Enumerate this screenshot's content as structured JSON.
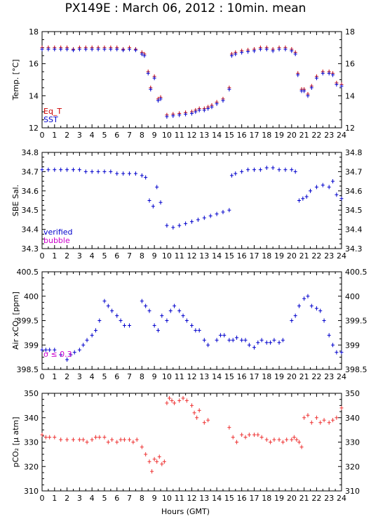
{
  "title": "PX149E : March 06, 2012 : 10min. mean",
  "xlabel": "Hours (GMT)",
  "x_ticks": [
    "0",
    "1",
    "2",
    "3",
    "4",
    "5",
    "6",
    "7",
    "8",
    "9",
    "10",
    "11",
    "12",
    "13",
    "14",
    "15",
    "16",
    "17",
    "18",
    "19",
    "20",
    "21",
    "22",
    "23",
    "24"
  ],
  "colors": {
    "eq_t": "#cc0000",
    "sst": "#0000cc",
    "verified": "#0000cc",
    "bubble": "#cc00cc",
    "pco2": "#ee3333",
    "sigma": "#cc00cc"
  },
  "chart_data": [
    {
      "type": "scatter",
      "ylabel": "Temp. [°C]",
      "xlim": [
        0,
        24
      ],
      "ylim": [
        12,
        18
      ],
      "y_ticks": [
        "12",
        "14",
        "16",
        "18"
      ],
      "legend": [
        "Eq_T",
        "SST"
      ],
      "legend_position": "bottom-left",
      "series": [
        {
          "name": "Eq_T",
          "color": "#cc0000",
          "x": [
            0,
            0.5,
            1,
            1.5,
            2,
            2.5,
            3,
            3.5,
            4,
            4.5,
            5,
            5.5,
            6,
            6.5,
            7,
            7.5,
            8,
            8.2,
            8.5,
            8.7,
            9,
            9.3,
            9.5,
            10,
            10.5,
            11,
            11.5,
            12,
            12.3,
            12.6,
            13,
            13.3,
            13.6,
            14,
            14.5,
            15,
            15.2,
            15.5,
            16,
            16.5,
            17,
            17.5,
            18,
            18.5,
            19,
            19.5,
            20,
            20.3,
            20.5,
            20.8,
            21,
            21.3,
            21.6,
            22,
            22.5,
            23,
            23.3,
            23.6,
            24
          ],
          "y": [
            17.0,
            17.0,
            17.0,
            17.0,
            17.0,
            16.9,
            17.0,
            17.0,
            17.0,
            17.0,
            17.0,
            17.0,
            17.0,
            16.9,
            17.0,
            16.9,
            16.7,
            16.6,
            15.5,
            14.5,
            15.2,
            13.8,
            13.9,
            12.8,
            12.85,
            12.9,
            12.95,
            13.0,
            13.1,
            13.2,
            13.2,
            13.3,
            13.4,
            13.6,
            13.8,
            14.5,
            16.6,
            16.7,
            16.8,
            16.85,
            16.9,
            17.0,
            17.0,
            16.9,
            17.0,
            17.0,
            16.9,
            16.7,
            15.4,
            14.4,
            14.4,
            14.1,
            14.6,
            15.2,
            15.5,
            15.5,
            15.4,
            14.8,
            14.7
          ]
        },
        {
          "name": "SST",
          "color": "#0000cc",
          "x": [
            0,
            0.5,
            1,
            1.5,
            2,
            2.5,
            3,
            3.5,
            4,
            4.5,
            5,
            5.5,
            6,
            6.5,
            7,
            7.5,
            8,
            8.2,
            8.5,
            8.7,
            9,
            9.3,
            9.5,
            10,
            10.5,
            11,
            11.5,
            12,
            12.3,
            12.6,
            13,
            13.3,
            13.6,
            14,
            14.5,
            15,
            15.2,
            15.5,
            16,
            16.5,
            17,
            17.5,
            18,
            18.5,
            19,
            19.5,
            20,
            20.3,
            20.5,
            20.8,
            21,
            21.3,
            21.6,
            22,
            22.5,
            23,
            23.3,
            23.6,
            24
          ],
          "y": [
            16.9,
            16.9,
            16.9,
            16.9,
            16.9,
            16.85,
            16.9,
            16.9,
            16.9,
            16.9,
            16.9,
            16.9,
            16.9,
            16.85,
            16.9,
            16.85,
            16.6,
            16.5,
            15.4,
            14.4,
            15.1,
            13.7,
            13.8,
            12.7,
            12.75,
            12.8,
            12.85,
            12.9,
            13.0,
            13.1,
            13.1,
            13.2,
            13.3,
            13.5,
            13.7,
            14.4,
            16.5,
            16.6,
            16.7,
            16.75,
            16.8,
            16.9,
            16.9,
            16.8,
            16.9,
            16.9,
            16.8,
            16.6,
            15.3,
            14.3,
            14.3,
            14.0,
            14.5,
            15.1,
            15.4,
            15.4,
            15.3,
            14.7,
            14.6
          ]
        }
      ]
    },
    {
      "type": "scatter",
      "ylabel": "SBE Sal.",
      "xlim": [
        0,
        24
      ],
      "ylim": [
        34.3,
        34.8
      ],
      "y_ticks": [
        "34.3",
        "34.4",
        "34.5",
        "34.6",
        "34.7",
        "34.8"
      ],
      "legend": [
        "verified",
        "bubble"
      ],
      "legend_position": "bottom-left",
      "series": [
        {
          "name": "verified",
          "color": "#0000cc",
          "x": [
            0,
            0.5,
            1,
            1.5,
            2,
            2.5,
            3,
            3.5,
            4,
            4.5,
            5,
            5.5,
            6,
            6.5,
            7,
            7.5,
            8,
            8.3,
            8.6,
            8.9,
            9.2,
            9.5,
            10,
            10.5,
            11,
            11.5,
            12,
            12.5,
            13,
            13.5,
            14,
            14.5,
            15,
            15.2,
            15.5,
            16,
            16.5,
            17,
            17.5,
            18,
            18.5,
            19,
            19.5,
            20,
            20.3,
            20.6,
            20.9,
            21.2,
            21.5,
            22,
            22.5,
            23,
            23.3,
            23.6,
            24
          ],
          "y": [
            34.71,
            34.71,
            34.71,
            34.71,
            34.71,
            34.71,
            34.71,
            34.7,
            34.7,
            34.7,
            34.7,
            34.7,
            34.69,
            34.69,
            34.69,
            34.69,
            34.68,
            34.67,
            34.55,
            34.52,
            34.62,
            34.54,
            34.42,
            34.41,
            34.42,
            34.43,
            34.44,
            34.45,
            34.46,
            34.47,
            34.48,
            34.49,
            34.5,
            34.68,
            34.69,
            34.7,
            34.71,
            34.71,
            34.71,
            34.72,
            34.72,
            34.71,
            34.71,
            34.71,
            34.7,
            34.55,
            34.56,
            34.57,
            34.6,
            34.62,
            34.63,
            34.62,
            34.65,
            34.58,
            34.56
          ]
        }
      ]
    },
    {
      "type": "scatter",
      "ylabel": "Air xCO₂ [ppm]",
      "xlim": [
        0,
        24
      ],
      "ylim": [
        398.5,
        400.5
      ],
      "y_ticks": [
        "398.5",
        "399",
        "399.5",
        "400",
        "400.5"
      ],
      "annotation": "σ ≤ 0.3",
      "series": [
        {
          "name": "",
          "color": "#0000cc",
          "x": [
            0,
            0.3,
            0.6,
            1,
            1.5,
            2,
            2.3,
            2.6,
            3,
            3.3,
            3.6,
            4,
            4.3,
            4.6,
            5,
            5.3,
            5.6,
            6,
            6.3,
            6.6,
            7,
            8,
            8.3,
            8.6,
            9,
            9.3,
            9.6,
            10,
            10.3,
            10.6,
            11,
            11.3,
            11.6,
            12,
            12.3,
            12.6,
            13,
            13.3,
            14,
            14.3,
            14.6,
            15,
            15.3,
            15.6,
            16,
            16.3,
            16.6,
            17,
            17.3,
            17.6,
            18,
            18.3,
            18.6,
            19,
            19.3,
            20,
            20.3,
            20.6,
            21,
            21.3,
            21.6,
            22,
            22.3,
            22.6,
            23,
            23.3,
            23.6,
            24
          ],
          "y": [
            398.9,
            398.9,
            398.9,
            398.9,
            398.8,
            398.7,
            398.8,
            398.85,
            398.9,
            399.0,
            399.1,
            399.2,
            399.3,
            399.5,
            399.9,
            399.8,
            399.7,
            399.6,
            399.5,
            399.4,
            399.4,
            399.9,
            399.8,
            399.7,
            399.4,
            399.3,
            399.6,
            399.5,
            399.7,
            399.8,
            399.7,
            399.6,
            399.5,
            399.4,
            399.3,
            399.3,
            399.1,
            399.0,
            399.1,
            399.2,
            399.2,
            399.1,
            399.1,
            399.15,
            399.1,
            399.1,
            399.0,
            398.95,
            399.05,
            399.1,
            399.05,
            399.05,
            399.1,
            399.05,
            399.1,
            399.5,
            399.6,
            399.8,
            399.95,
            400.0,
            399.8,
            399.75,
            399.7,
            399.5,
            399.2,
            399.0,
            398.85,
            398.85
          ]
        }
      ]
    },
    {
      "type": "scatter",
      "ylabel": "pCO₂ [μ atm]",
      "xlim": [
        0,
        24
      ],
      "ylim": [
        310,
        350
      ],
      "y_ticks": [
        "310",
        "320",
        "330",
        "340",
        "350"
      ],
      "series": [
        {
          "name": "",
          "color": "#ee3333",
          "x": [
            0,
            0.3,
            0.6,
            1,
            1.5,
            2,
            2.5,
            3,
            3.3,
            3.6,
            4,
            4.3,
            4.6,
            5,
            5.3,
            5.6,
            6,
            6.3,
            6.6,
            7,
            7.3,
            7.6,
            8,
            8.3,
            8.6,
            8.8,
            9,
            9.2,
            9.4,
            9.6,
            9.8,
            10,
            10.2,
            10.4,
            10.6,
            11,
            11.3,
            11.6,
            12,
            12.2,
            12.4,
            12.6,
            13,
            13.3,
            15,
            15.3,
            15.6,
            16,
            16.3,
            16.6,
            17,
            17.3,
            17.6,
            18,
            18.3,
            18.6,
            19,
            19.3,
            19.6,
            20,
            20.2,
            20.4,
            20.6,
            20.8,
            21,
            21.3,
            21.6,
            22,
            22.3,
            22.6,
            23,
            23.3,
            23.6,
            24
          ],
          "y": [
            333,
            332,
            332,
            332,
            331,
            331,
            331,
            331,
            331,
            330,
            331,
            332,
            332,
            332,
            330,
            331,
            330,
            331,
            331,
            331,
            330,
            331,
            328,
            325,
            322,
            318,
            323,
            322,
            324,
            321,
            322,
            346,
            348,
            347,
            346,
            347,
            348,
            347,
            345,
            342,
            340,
            343,
            338,
            339,
            336,
            332,
            330,
            333,
            332,
            333,
            333,
            333,
            332,
            331,
            330,
            331,
            331,
            330,
            331,
            331,
            332,
            331,
            330,
            328,
            340,
            341,
            338,
            340,
            338,
            339,
            338,
            339,
            340,
            344
          ]
        }
      ]
    }
  ]
}
